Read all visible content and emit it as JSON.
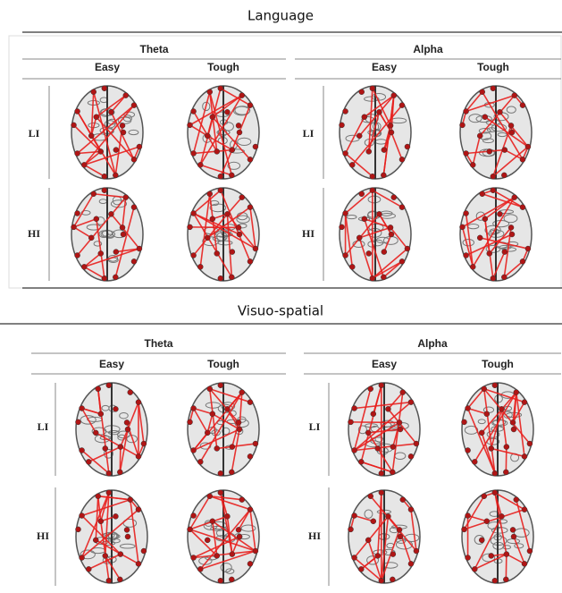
{
  "panels": [
    {
      "title": "Language",
      "bands": [
        {
          "name": "Theta",
          "conditions": [
            "Easy",
            "Tough"
          ]
        },
        {
          "name": "Alpha",
          "conditions": [
            "Easy",
            "Tough"
          ]
        }
      ],
      "rows": [
        "LI",
        "HI"
      ]
    },
    {
      "title": "Visuo-spatial",
      "bands": [
        {
          "name": "Theta",
          "conditions": [
            "Easy",
            "Tough"
          ]
        },
        {
          "name": "Alpha",
          "conditions": [
            "Easy",
            "Tough"
          ]
        }
      ],
      "rows": [
        "LI",
        "HI"
      ]
    }
  ]
}
